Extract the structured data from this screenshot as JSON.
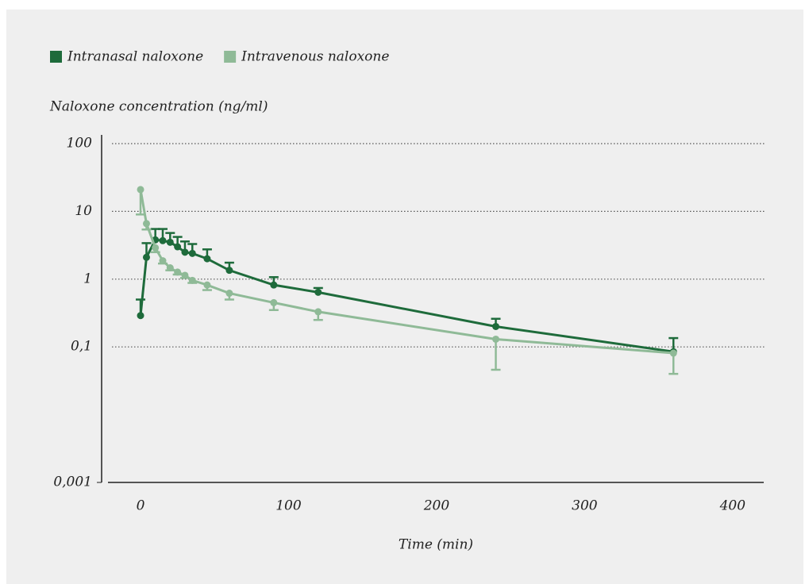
{
  "chart_data": {
    "type": "line",
    "y_label": "Naloxone concentration (ng/ml)",
    "x_label": "Time (min)",
    "x": [
      0,
      4,
      10,
      15,
      20,
      25,
      30,
      35,
      45,
      60,
      90,
      120,
      240,
      360
    ],
    "series": [
      {
        "name": "Intranasal naloxone",
        "color": "#1e6b3b",
        "error_side": "upper",
        "values": [
          0.29,
          2.1,
          3.8,
          3.7,
          3.5,
          3.0,
          2.5,
          2.4,
          2.0,
          1.35,
          0.82,
          0.64,
          0.2,
          0.085
        ],
        "errors": [
          0.21,
          1.3,
          1.7,
          1.8,
          1.3,
          1.2,
          1.1,
          0.9,
          0.75,
          0.4,
          0.25,
          0.1,
          0.06,
          0.05
        ]
      },
      {
        "name": "Intravenous naloxone",
        "color": "#8fba97",
        "error_side": "lower",
        "values": [
          21,
          6.6,
          2.9,
          1.87,
          1.47,
          1.27,
          1.14,
          0.96,
          0.82,
          0.62,
          0.45,
          0.33,
          0.13,
          0.081
        ],
        "errors": [
          12,
          1.2,
          0.4,
          0.17,
          0.12,
          0.1,
          0.1,
          0.08,
          0.13,
          0.12,
          0.1,
          0.08,
          0.084,
          0.041
        ]
      }
    ],
    "xlim": [
      -22,
      421
    ],
    "xticks": [
      0,
      100,
      200,
      300,
      400
    ],
    "ylog": true,
    "ylim": [
      0.001,
      100
    ],
    "yticks": [
      {
        "value": 0.001,
        "label": "0,001"
      },
      {
        "value": 0.1,
        "label": "0,1"
      },
      1,
      10,
      100
    ],
    "grid": true
  }
}
